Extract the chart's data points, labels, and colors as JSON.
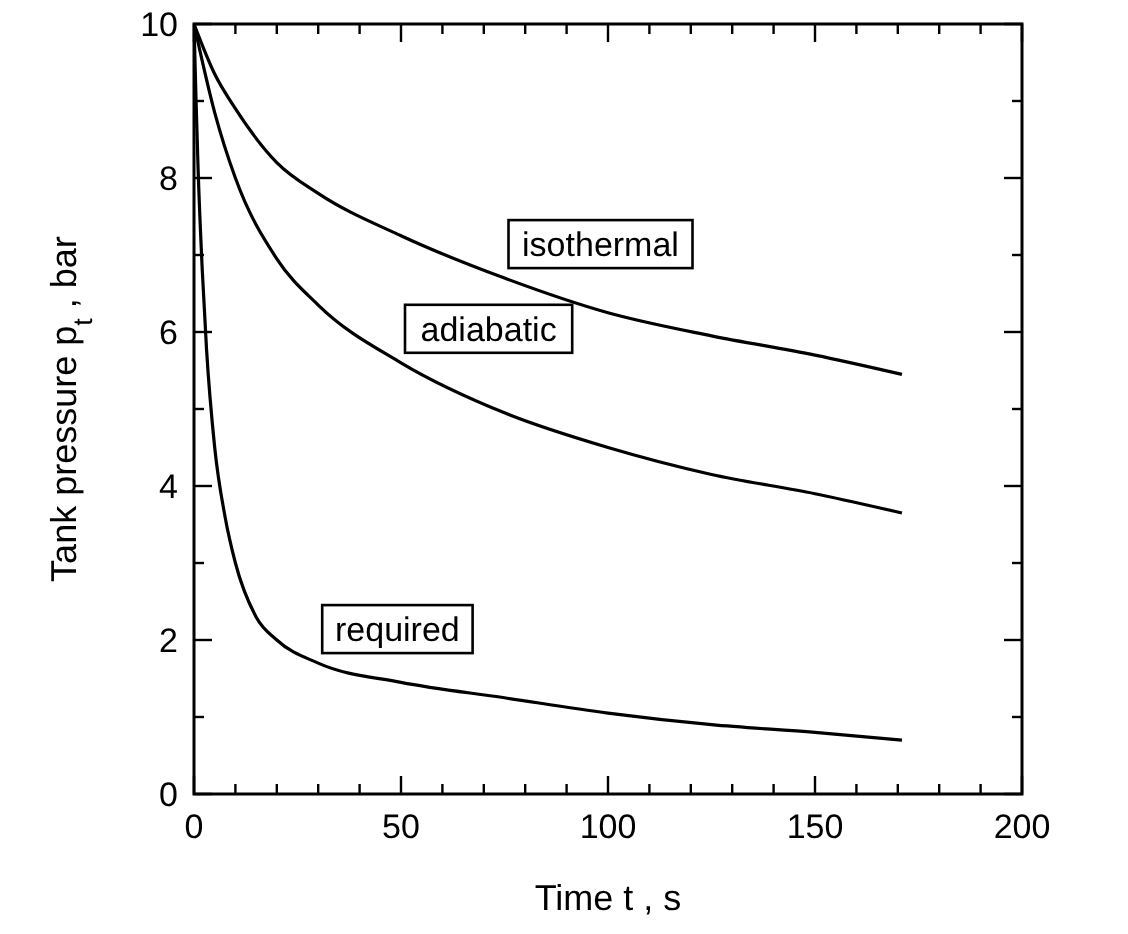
{
  "chart_data": {
    "type": "line",
    "xlabel": "Time t  , s",
    "ylabel": "Tank pressure p$_{t}$  , bar",
    "xlim": [
      0,
      200
    ],
    "ylim": [
      0,
      10
    ],
    "xticks": [
      0,
      {
        "value": 10,
        "label": null
      },
      {
        "value": 20,
        "label": null
      },
      {
        "value": 30,
        "label": null
      },
      {
        "value": 40,
        "label": null
      },
      50,
      {
        "value": 60,
        "label": null
      },
      {
        "value": 70,
        "label": null
      },
      {
        "value": 80,
        "label": null
      },
      {
        "value": 90,
        "label": null
      },
      100,
      {
        "value": 110,
        "label": null
      },
      {
        "value": 120,
        "label": null
      },
      {
        "value": 130,
        "label": null
      },
      {
        "value": 140,
        "label": null
      },
      150,
      {
        "value": 160,
        "label": null
      },
      {
        "value": 170,
        "label": null
      },
      {
        "value": 180,
        "label": null
      },
      {
        "value": 190,
        "label": null
      },
      200
    ],
    "yticks": [
      0,
      {
        "value": 1,
        "label": null
      },
      2,
      {
        "value": 3,
        "label": null
      },
      4,
      {
        "value": 5,
        "label": null
      },
      6,
      {
        "value": 7,
        "label": null
      },
      8,
      {
        "value": 9,
        "label": null
      },
      10
    ],
    "grid": false,
    "marker": "none",
    "line_style": "solid",
    "series": [
      {
        "name": "isothermal",
        "color": "#000000",
        "x": [
          0,
          5,
          10,
          20,
          30,
          50,
          75,
          100,
          125,
          150,
          171
        ],
        "values": [
          10,
          9.35,
          8.9,
          8.2,
          7.8,
          7.25,
          6.7,
          6.25,
          5.95,
          5.7,
          5.45
        ]
      },
      {
        "name": "adiabatic",
        "color": "#000000",
        "x": [
          0,
          5,
          10,
          20,
          30,
          50,
          75,
          100,
          125,
          150,
          171
        ],
        "values": [
          10,
          8.85,
          8.0,
          6.95,
          6.35,
          5.6,
          4.95,
          4.5,
          4.15,
          3.9,
          3.65
        ]
      },
      {
        "name": "required",
        "color": "#000000",
        "x": [
          0,
          0.5,
          1,
          2,
          3,
          5,
          7.5,
          10,
          15,
          20,
          30,
          50,
          75,
          100,
          125,
          150,
          171
        ],
        "values": [
          10,
          9,
          8.1,
          6.8,
          5.8,
          4.5,
          3.6,
          3.0,
          2.3,
          2.0,
          1.7,
          1.45,
          1.25,
          1.05,
          0.9,
          0.8,
          0.7
        ]
      }
    ]
  }
}
